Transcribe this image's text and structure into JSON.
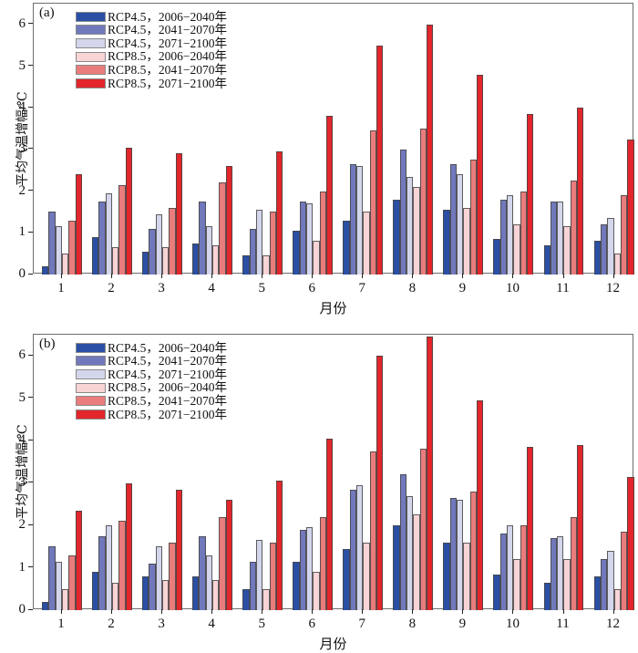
{
  "figure": {
    "xlabel": "月份",
    "ylabel": "平均气温增幅/℃"
  },
  "chart_data": [
    {
      "type": "bar",
      "panel": "(a)",
      "xlabel": "月份",
      "ylabel": "平均气温增幅/℃",
      "ylim": [
        0,
        6.5
      ],
      "yticks": [
        0,
        1,
        2,
        3,
        4,
        5,
        6
      ],
      "categories": [
        "1",
        "2",
        "3",
        "4",
        "5",
        "6",
        "7",
        "8",
        "9",
        "10",
        "11",
        "12"
      ],
      "legend_position": "upper-left-inside",
      "grid": false,
      "series": [
        {
          "name": "RCP4.5，2006−2040年",
          "color": "#2A4FA4",
          "values": [
            0.2,
            0.9,
            0.55,
            0.75,
            0.45,
            1.05,
            1.3,
            1.8,
            1.55,
            0.85,
            0.7,
            0.8
          ]
        },
        {
          "name": "RCP4.5，2041−2070年",
          "color": "#7179BC",
          "values": [
            1.5,
            1.75,
            1.1,
            1.75,
            1.1,
            1.75,
            2.65,
            3.0,
            2.65,
            1.8,
            1.75,
            1.2
          ]
        },
        {
          "name": "RCP4.5，2071−2100年",
          "color": "#D4D6EC",
          "values": [
            1.15,
            1.95,
            1.45,
            1.15,
            1.55,
            1.7,
            2.6,
            2.35,
            2.4,
            1.9,
            1.75,
            1.35
          ]
        },
        {
          "name": "RCP8.5，2006−2040年",
          "color": "#F9D4D6",
          "values": [
            0.5,
            0.65,
            0.65,
            0.7,
            0.45,
            0.8,
            1.5,
            2.1,
            1.6,
            1.2,
            1.15,
            0.5
          ]
        },
        {
          "name": "RCP8.5，2041−2070年",
          "color": "#E97C7C",
          "values": [
            1.3,
            2.15,
            1.6,
            2.2,
            1.5,
            2.0,
            3.45,
            3.5,
            2.75,
            2.0,
            2.25,
            1.9
          ]
        },
        {
          "name": "RCP8.5，2071−2100年",
          "color": "#E2262B",
          "values": [
            2.4,
            3.05,
            2.9,
            2.6,
            2.95,
            3.8,
            5.5,
            6.0,
            4.8,
            3.85,
            4.0,
            3.25
          ]
        }
      ]
    },
    {
      "type": "bar",
      "panel": "(b)",
      "xlabel": "月份",
      "ylabel": "平均气温增幅/℃",
      "ylim": [
        0,
        6.5
      ],
      "yticks": [
        0,
        1,
        2,
        3,
        4,
        5,
        6
      ],
      "categories": [
        "1",
        "2",
        "3",
        "4",
        "5",
        "6",
        "7",
        "8",
        "9",
        "10",
        "11",
        "12"
      ],
      "legend_position": "upper-left-inside",
      "grid": false,
      "series": [
        {
          "name": "RCP4.5，2006−2040年",
          "color": "#2A4FA4",
          "values": [
            0.2,
            0.9,
            0.8,
            0.8,
            0.5,
            1.15,
            1.45,
            2.0,
            1.6,
            0.85,
            0.65,
            0.8
          ]
        },
        {
          "name": "RCP4.5，2041−2070年",
          "color": "#7179BC",
          "values": [
            1.5,
            1.75,
            1.1,
            1.75,
            1.15,
            1.9,
            2.85,
            3.2,
            2.65,
            1.8,
            1.7,
            1.2
          ]
        },
        {
          "name": "RCP4.5，2071−2100年",
          "color": "#D4D6EC",
          "values": [
            1.15,
            2.0,
            1.5,
            1.3,
            1.65,
            1.95,
            2.95,
            2.7,
            2.6,
            2.0,
            1.75,
            1.4
          ]
        },
        {
          "name": "RCP8.5，2006−2040年",
          "color": "#F9D4D6",
          "values": [
            0.5,
            0.65,
            0.7,
            0.7,
            0.5,
            0.9,
            1.6,
            2.25,
            1.6,
            1.2,
            1.2,
            0.5
          ]
        },
        {
          "name": "RCP8.5，2041−2070年",
          "color": "#E97C7C",
          "values": [
            1.3,
            2.1,
            1.6,
            2.2,
            1.6,
            2.2,
            3.75,
            3.8,
            2.8,
            2.0,
            2.2,
            1.85
          ]
        },
        {
          "name": "RCP8.5，2071−2100年",
          "color": "#E2262B",
          "values": [
            2.35,
            3.0,
            2.85,
            2.6,
            3.05,
            4.05,
            6.0,
            6.45,
            4.95,
            3.85,
            3.9,
            3.15
          ]
        }
      ]
    }
  ]
}
